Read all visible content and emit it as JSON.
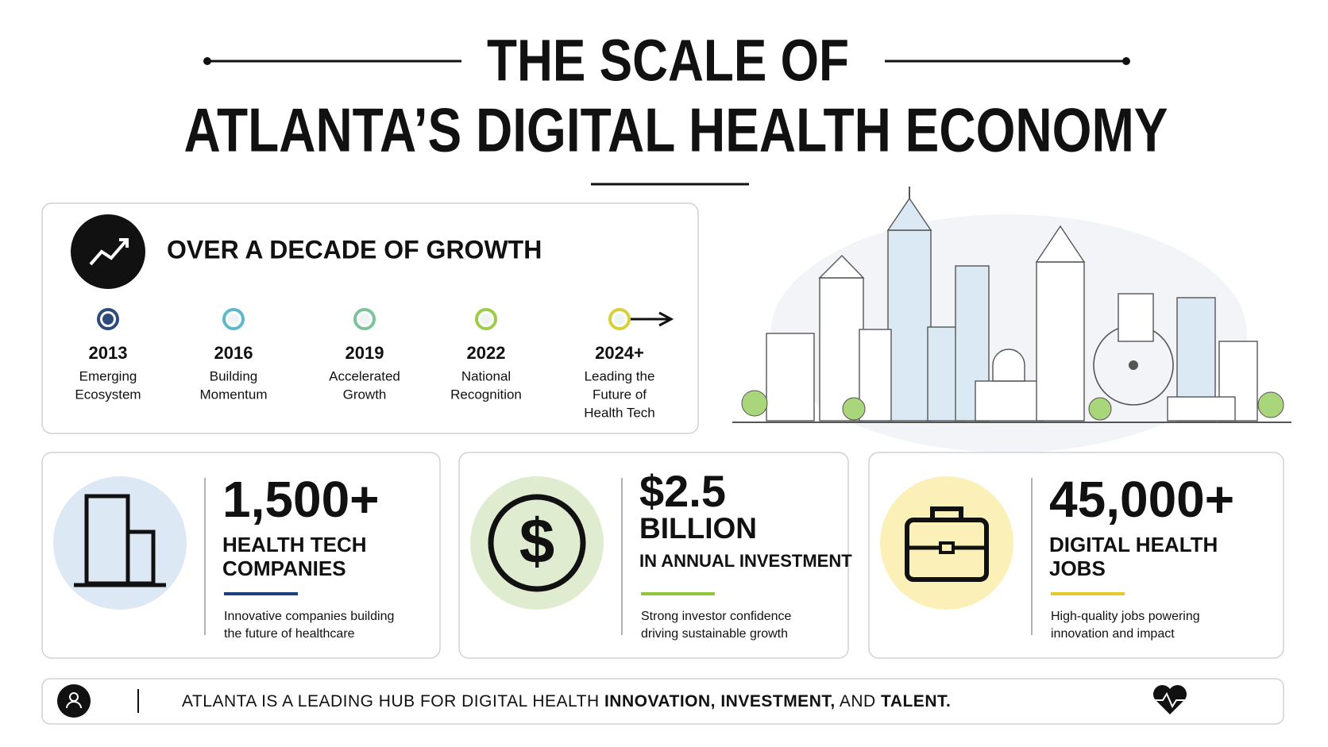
{
  "header": {
    "title_lines": [
      "THE SCALE OF",
      "ATLANTA’S DIGITAL HEALTH ECONOMY"
    ]
  },
  "timeline": {
    "heading": "OVER A DECADE OF GROWTH",
    "milestones": [
      {
        "year": "2013",
        "label": [
          "Emerging",
          "Ecosystem"
        ],
        "color": "#2c4a7a"
      },
      {
        "year": "2016",
        "label": [
          "Building",
          "Momentum"
        ],
        "color": "#5fb8c9"
      },
      {
        "year": "2019",
        "label": [
          "Accelerated",
          "Growth"
        ],
        "color": "#7cc39a"
      },
      {
        "year": "2022",
        "label": [
          "National",
          "Recognition"
        ],
        "color": "#9ccc4a"
      },
      {
        "year": "2024+",
        "label": [
          "Leading the",
          "Future of",
          "Health Tech"
        ],
        "color": "#d9cf3a"
      }
    ]
  },
  "stats": [
    {
      "value": "1,500+",
      "unit": [
        "HEALTH TECH",
        "COMPANIES"
      ],
      "description": [
        "Innovative companies building",
        "the future of healthcare"
      ],
      "circle": "#dce8f3",
      "accent": "#1f3f7a"
    },
    {
      "value": "$2.5",
      "unit": [
        "BILLION",
        "IN ANNUAL INVESTMENT"
      ],
      "description": [
        "Strong investor confidence",
        "driving sustainable growth"
      ],
      "circle": "#dfeccf",
      "accent": "#8dc63f"
    },
    {
      "value": "45,000+",
      "unit": [
        "DIGITAL HEALTH",
        "JOBS"
      ],
      "description": [
        "High-quality jobs powering",
        "innovation and impact"
      ],
      "circle": "#fbf0b8",
      "accent": "#e8c92b"
    }
  ],
  "footer": {
    "parts": [
      "ATLANTA IS A LEADING HUB FOR DIGITAL HEALTH ",
      "INNOVATION, INVESTMENT,",
      " AND ",
      "TALENT."
    ]
  }
}
